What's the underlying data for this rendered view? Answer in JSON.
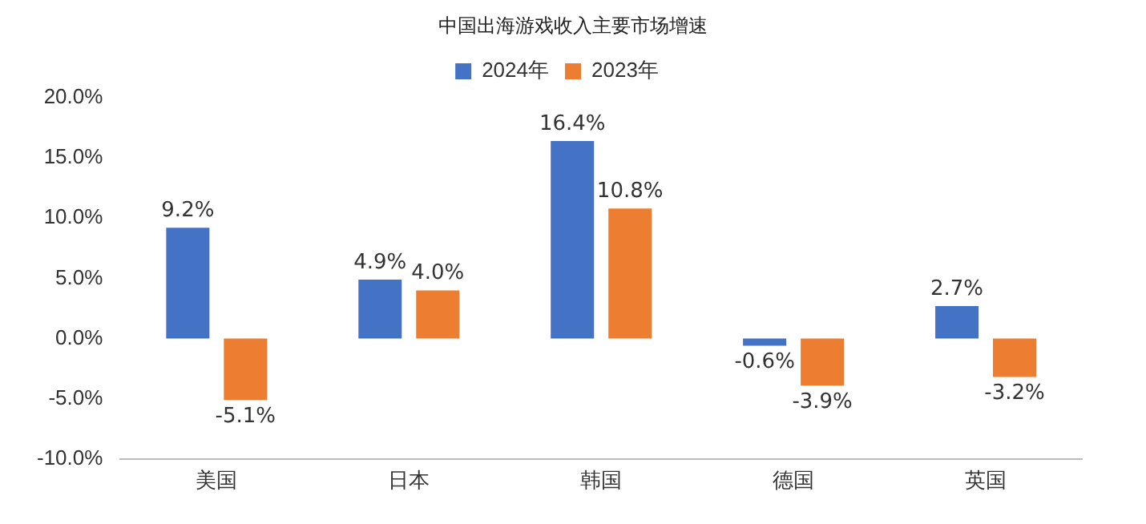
{
  "chart_data": {
    "type": "bar",
    "title": "中国出海游戏收入主要市场增速",
    "categories": [
      "美国",
      "日本",
      "韩国",
      "德国",
      "英国"
    ],
    "series": [
      {
        "name": "2024年",
        "color": "#4472c4",
        "values": [
          9.2,
          4.9,
          16.4,
          -0.6,
          2.7
        ],
        "value_labels": [
          "9.2%",
          "4.9%",
          "16.4%",
          "-0.6%",
          "2.7%"
        ]
      },
      {
        "name": "2023年",
        "color": "#ed7d31",
        "values": [
          -5.1,
          4.0,
          10.8,
          -3.9,
          -3.2
        ],
        "value_labels": [
          "-5.1%",
          "4.0%",
          "10.8%",
          "-3.9%",
          "-3.2%"
        ]
      }
    ],
    "ylim": [
      -10,
      20
    ],
    "yticks": [
      {
        "value": -10,
        "label": "-10.0%"
      },
      {
        "value": -5,
        "label": "-5.0%"
      },
      {
        "value": 0,
        "label": "0.0%"
      },
      {
        "value": 5,
        "label": "5.0%"
      },
      {
        "value": 10,
        "label": "10.0%"
      },
      {
        "value": 15,
        "label": "15.0%"
      },
      {
        "value": 20,
        "label": "20.0%"
      }
    ],
    "grid": false,
    "legend": "top"
  }
}
